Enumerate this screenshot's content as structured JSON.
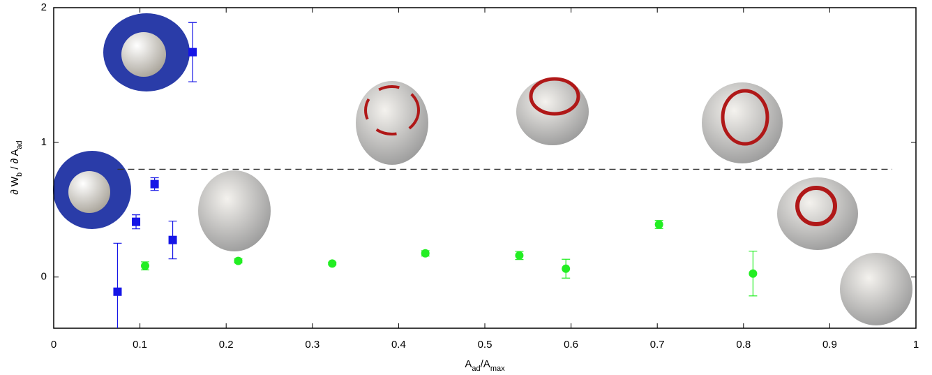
{
  "chart_data": {
    "type": "scatter",
    "xlabel": [
      "A",
      "ad",
      "/A",
      "max"
    ],
    "ylabel": [
      "∂ W",
      "b",
      " / ∂ A",
      "ad"
    ],
    "xlim": [
      0,
      1
    ],
    "ylim": [
      -0.38,
      2
    ],
    "xticks": [
      0,
      0.1,
      0.2,
      0.3,
      0.4,
      0.5,
      0.6,
      0.7,
      0.8,
      0.9,
      1
    ],
    "yticks": [
      0,
      1,
      2
    ],
    "grid": false,
    "reference_line": {
      "y": 0.8,
      "x": [
        0.074,
        0.9725
      ],
      "color": "#333333",
      "dashed": true
    },
    "series": [
      {
        "color": "#1515e6",
        "marker": "square",
        "x": [
          0.074,
          0.0955,
          0.117,
          0.138,
          0.161
        ],
        "values": [
          -0.109,
          0.41,
          0.69,
          0.275,
          1.67
        ],
        "errors": [
          0.36,
          0.052,
          0.047,
          0.14,
          0.22
        ]
      },
      {
        "color": "#22ee22",
        "marker": "circle",
        "x": [
          0.106,
          0.214,
          0.323,
          0.431,
          0.54,
          0.594,
          0.702,
          0.811
        ],
        "values": [
          0.083,
          0.12,
          0.1,
          0.176,
          0.16,
          0.062,
          0.39,
          0.026
        ],
        "errors": [
          0.03,
          0.015,
          0.01,
          0.02,
          0.03,
          0.07,
          0.03,
          0.166
        ]
      }
    ]
  }
}
